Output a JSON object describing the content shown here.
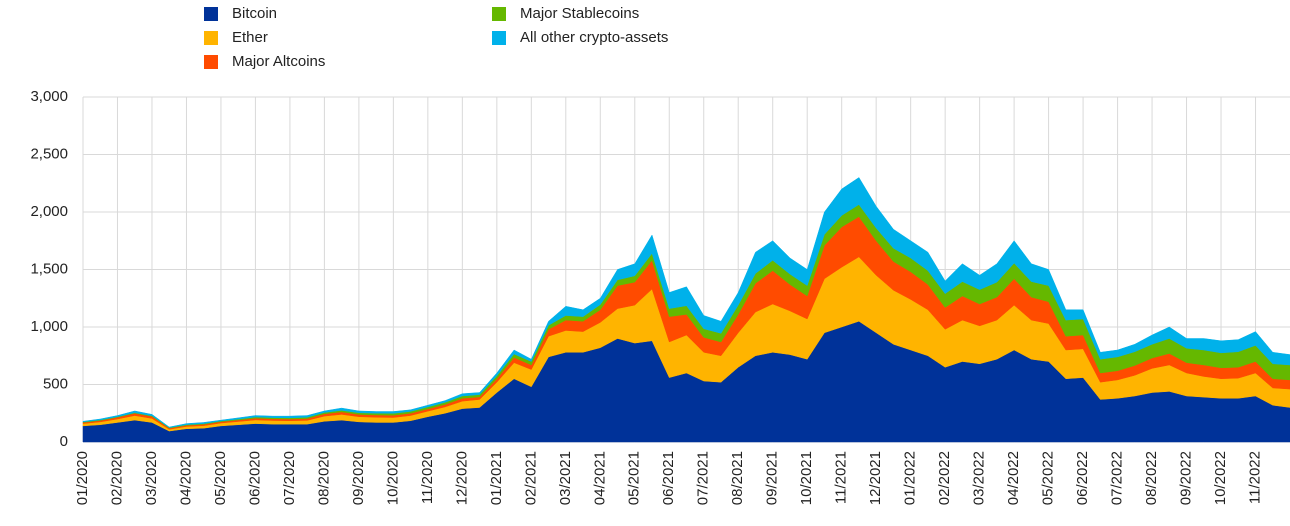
{
  "chart_data": {
    "type": "stacked-area",
    "categories": [
      "01/2020",
      null,
      "02/2020",
      null,
      "03/2020",
      null,
      "04/2020",
      null,
      "05/2020",
      null,
      "06/2020",
      null,
      "07/2020",
      null,
      "08/2020",
      null,
      "09/2020",
      null,
      "10/2020",
      null,
      "11/2020",
      null,
      "12/2020",
      null,
      "01/2021",
      null,
      "02/2021",
      null,
      "03/2021",
      null,
      "04/2021",
      null,
      "05/2021",
      null,
      "06/2021",
      null,
      "07/2021",
      null,
      "08/2021",
      null,
      "09/2021",
      null,
      "10/2021",
      null,
      "11/2021",
      null,
      "12/2021",
      null,
      "01/2022",
      null,
      "02/2022",
      null,
      "03/2022",
      null,
      "04/2022",
      null,
      "05/2022",
      null,
      "06/2022",
      null,
      "07/2022",
      null,
      "08/2022",
      null,
      "09/2022",
      null,
      "10/2022",
      null,
      "11/2022",
      null,
      null
    ],
    "series": [
      {
        "name": "Bitcoin",
        "color": "#003299",
        "values": [
          140,
          150,
          170,
          190,
          170,
          95,
          115,
          120,
          140,
          150,
          160,
          155,
          155,
          155,
          180,
          190,
          175,
          170,
          170,
          185,
          220,
          250,
          290,
          300,
          430,
          550,
          480,
          740,
          780,
          780,
          820,
          900,
          860,
          880,
          560,
          600,
          530,
          520,
          650,
          750,
          780,
          760,
          720,
          950,
          1000,
          1050,
          950,
          850,
          800,
          750,
          650,
          700,
          680,
          720,
          800,
          720,
          700,
          550,
          560,
          370,
          380,
          400,
          430,
          440,
          400,
          390,
          380,
          380,
          400,
          320,
          300
        ]
      },
      {
        "name": "Ether",
        "color": "#ffb400",
        "values": [
          20,
          25,
          30,
          40,
          35,
          15,
          20,
          22,
          25,
          28,
          32,
          32,
          30,
          33,
          45,
          50,
          45,
          45,
          43,
          45,
          48,
          55,
          65,
          70,
          90,
          140,
          150,
          180,
          190,
          180,
          220,
          260,
          330,
          450,
          310,
          330,
          250,
          230,
          300,
          380,
          420,
          380,
          350,
          470,
          520,
          560,
          500,
          470,
          440,
          400,
          330,
          360,
          330,
          340,
          390,
          340,
          330,
          250,
          250,
          150,
          160,
          180,
          210,
          230,
          200,
          180,
          170,
          175,
          200,
          150,
          160
        ]
      },
      {
        "name": "Major Altcoins",
        "color": "#ff4b00",
        "values": [
          10,
          12,
          15,
          20,
          18,
          10,
          10,
          12,
          12,
          13,
          15,
          15,
          15,
          16,
          20,
          22,
          20,
          20,
          20,
          20,
          20,
          22,
          25,
          22,
          30,
          45,
          40,
          60,
          90,
          90,
          110,
          200,
          200,
          250,
          220,
          180,
          130,
          120,
          160,
          250,
          290,
          230,
          200,
          290,
          350,
          350,
          300,
          250,
          240,
          220,
          190,
          210,
          190,
          200,
          230,
          200,
          190,
          120,
          120,
          80,
          80,
          85,
          90,
          100,
          90,
          100,
          95,
          95,
          100,
          80,
          80
        ]
      },
      {
        "name": "Major Stablecoins",
        "color": "#65b800",
        "values": [
          5,
          5,
          5,
          5,
          5,
          5,
          6,
          6,
          6,
          8,
          10,
          10,
          10,
          11,
          12,
          13,
          14,
          15,
          16,
          16,
          17,
          18,
          20,
          20,
          25,
          30,
          30,
          35,
          40,
          40,
          45,
          50,
          55,
          60,
          70,
          75,
          75,
          75,
          80,
          85,
          90,
          90,
          90,
          95,
          100,
          105,
          110,
          115,
          120,
          120,
          120,
          125,
          125,
          130,
          135,
          135,
          140,
          140,
          140,
          120,
          120,
          120,
          120,
          130,
          125,
          130,
          130,
          135,
          140,
          130,
          130
        ]
      },
      {
        "name": "All other crypto-assets",
        "color": "#00b1ea",
        "values": [
          5,
          8,
          10,
          15,
          12,
          5,
          9,
          10,
          7,
          11,
          13,
          13,
          15,
          15,
          13,
          20,
          16,
          15,
          16,
          14,
          15,
          15,
          20,
          18,
          25,
          35,
          20,
          35,
          80,
          60,
          55,
          90,
          105,
          160,
          140,
          165,
          115,
          105,
          110,
          185,
          170,
          140,
          140,
          195,
          230,
          235,
          190,
          165,
          150,
          160,
          110,
          155,
          125,
          160,
          195,
          155,
          140,
          90,
          80,
          60,
          60,
          65,
          80,
          100,
          85,
          100,
          105,
          105,
          120,
          100,
          90
        ]
      }
    ],
    "ylim": [
      0,
      3000
    ],
    "yticks": [
      0,
      500,
      {
        "value": 1000,
        "label": "1,000"
      },
      {
        "value": 1500,
        "label": "1,500"
      },
      {
        "value": 2000,
        "label": "2,000"
      },
      {
        "value": 2500,
        "label": "2,500"
      },
      {
        "value": 3000,
        "label": "3,000"
      }
    ],
    "grid": true
  }
}
